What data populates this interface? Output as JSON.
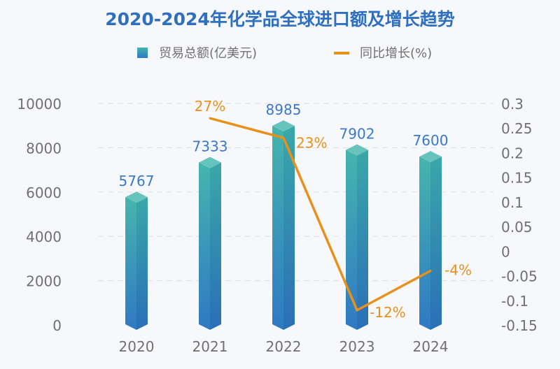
{
  "chart_data": {
    "type": "bar+line",
    "title": "2020-2024年化学品全球进口额及增长趋势",
    "categories": [
      "2020",
      "2021",
      "2022",
      "2023",
      "2024"
    ],
    "series": [
      {
        "name": "贸易总额(亿美元)",
        "type": "bar",
        "axis": "left",
        "values": [
          5767,
          7333,
          8985,
          7902,
          7600
        ],
        "labels": [
          "5767",
          "7333",
          "8985",
          "7902",
          "7600"
        ]
      },
      {
        "name": "同比增长(%)",
        "type": "line",
        "axis": "right",
        "values": [
          null,
          0.27,
          0.23,
          -0.12,
          -0.04
        ],
        "labels": [
          "",
          "27%",
          "23%",
          "-12%",
          "-4%"
        ]
      }
    ],
    "left_axis": {
      "ylim": [
        0,
        10000
      ],
      "ticks": [
        "0",
        "2000",
        "4000",
        "6000",
        "8000",
        "10000"
      ]
    },
    "right_axis": {
      "ylim": [
        -0.15,
        0.3
      ],
      "ticks": [
        "-0.15",
        "-0.1",
        "-0.05",
        "0",
        "0.05",
        "0.1",
        "0.15",
        "0.2",
        "0.25",
        "0.3"
      ]
    },
    "grid": true,
    "legend": "top",
    "colors": {
      "title": "#2f6fc0",
      "bar_top": "#45b5ad",
      "bar_bottom": "#2f79c4",
      "line": "#e8901c",
      "bar_label": "#3a78c9",
      "axis_text": "#707070"
    }
  }
}
